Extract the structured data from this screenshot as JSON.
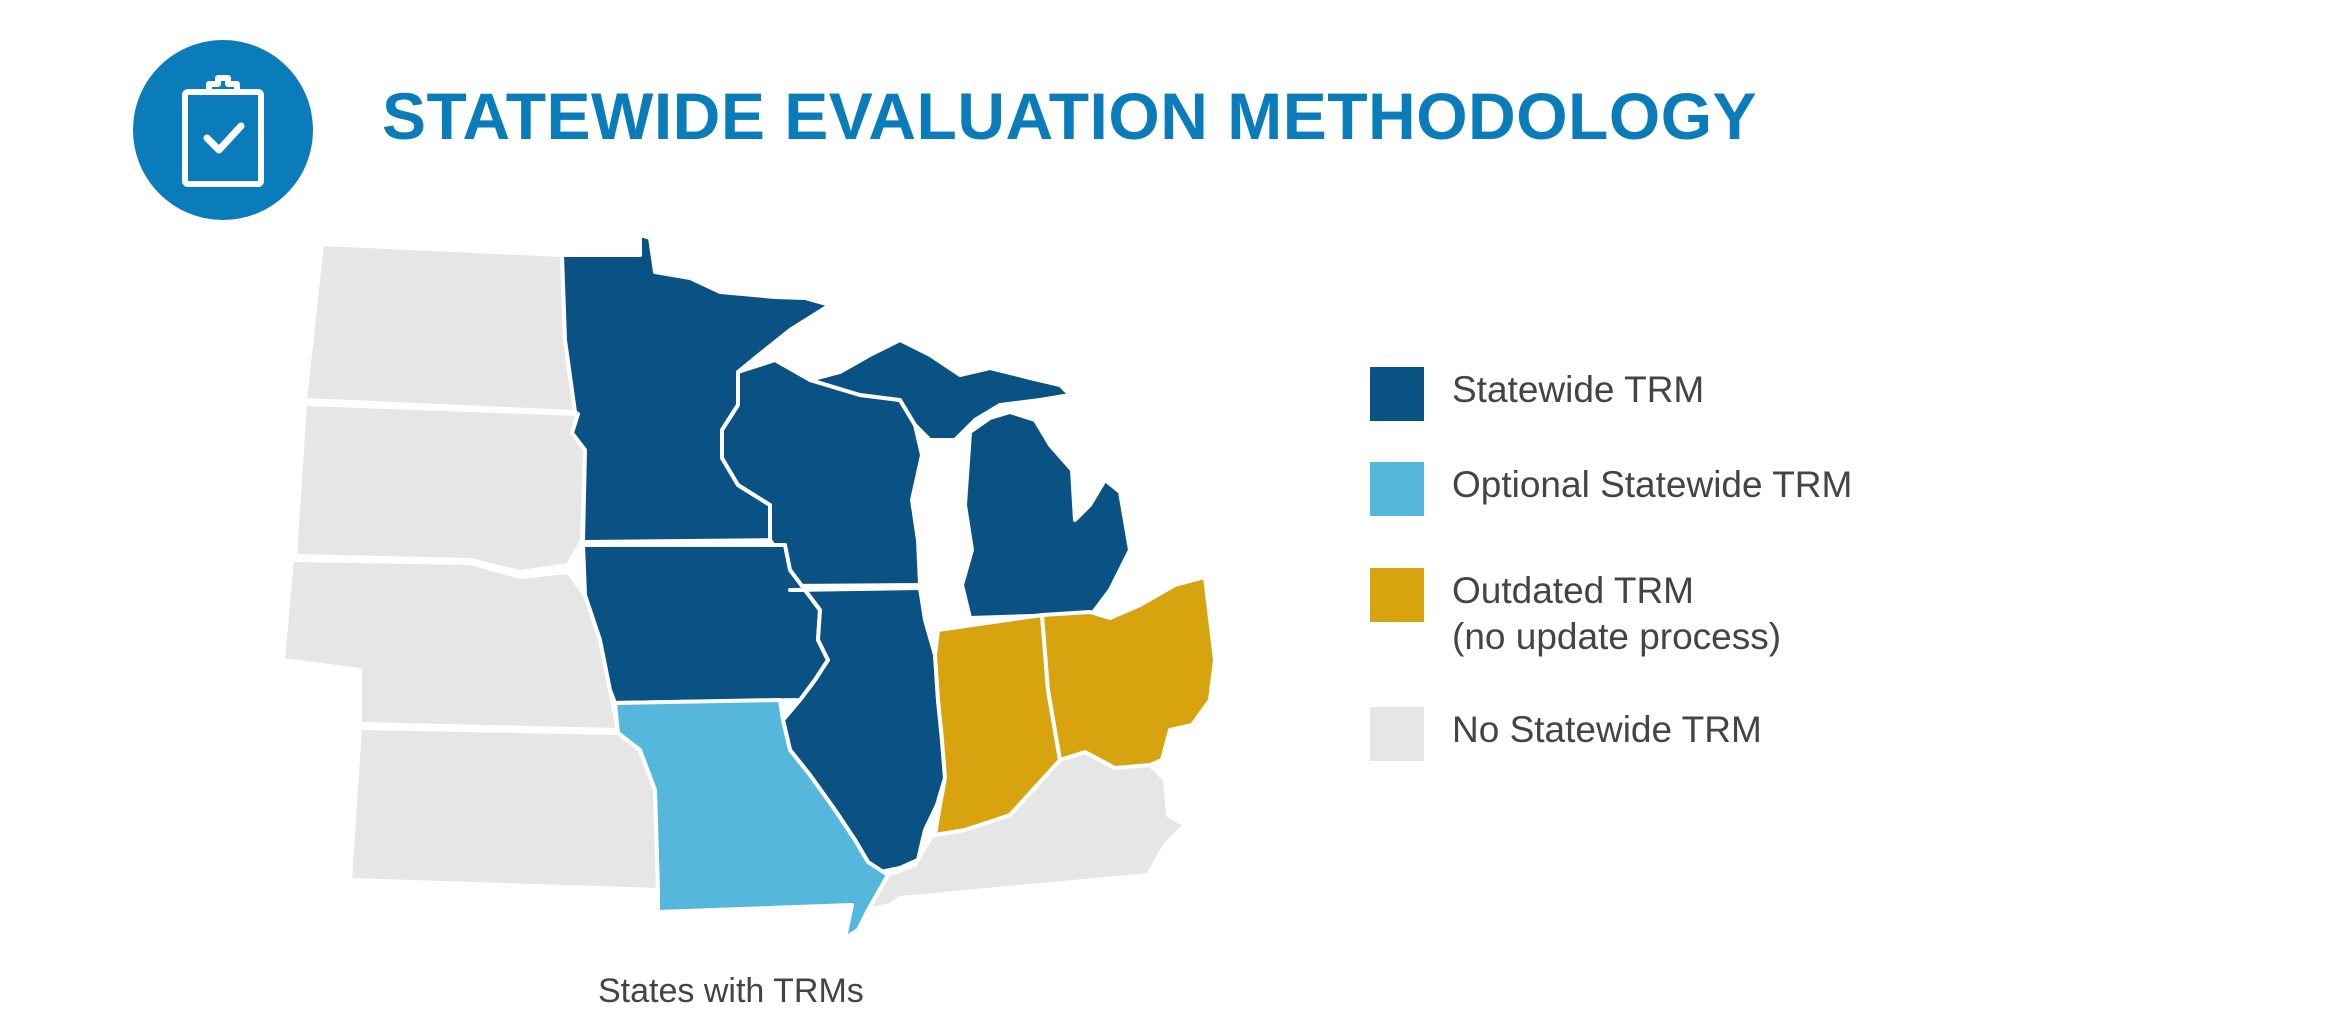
{
  "header": {
    "title": "STATEWIDE EVALUATION METHODOLOGY",
    "icon": "clipboard-check-icon"
  },
  "colors": {
    "statewide": "#0a5283",
    "optional": "#56b7dc",
    "outdated": "#d7a30f",
    "none": "#e6e6e6",
    "accent": "#0a7cba"
  },
  "map": {
    "caption": "States with TRMs"
  },
  "legend": {
    "items": [
      {
        "label": "Statewide TRM",
        "sublabel": "",
        "color": "#0a5283"
      },
      {
        "label": "Optional Statewide TRM",
        "sublabel": "",
        "color": "#56b7dc"
      },
      {
        "label": "Outdated TRM",
        "sublabel": "(no update process)",
        "color": "#d7a30f"
      },
      {
        "label": "No Statewide TRM",
        "sublabel": "",
        "color": "#e6e6e6"
      }
    ]
  }
}
